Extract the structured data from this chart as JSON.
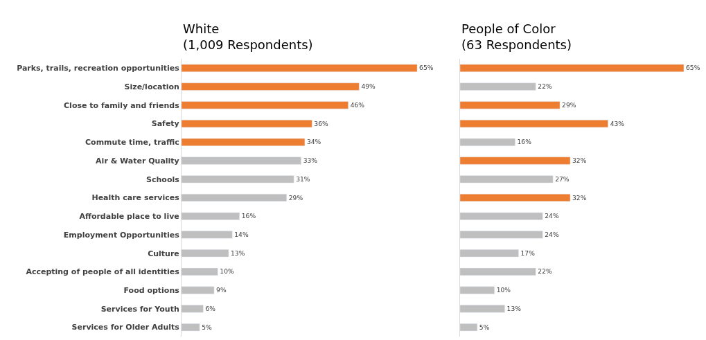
{
  "chart_data": [
    {
      "type": "bar",
      "orientation": "horizontal",
      "title": "White\n(1,009 Respondents)",
      "categories": [
        "Parks, trails, recreation opportunities",
        "Size/location",
        "Close to family and friends",
        "Safety",
        "Commute time, traffic",
        "Air & Water Quality",
        "Schools",
        "Health care services",
        "Affordable place to live",
        "Employment Opportunities",
        "Culture",
        "Accepting of people of all identities",
        "Food options",
        "Services for Youth",
        "Services for Older Adults"
      ],
      "values": [
        65,
        49,
        46,
        36,
        34,
        33,
        31,
        29,
        16,
        14,
        13,
        10,
        9,
        6,
        5
      ],
      "colors": [
        "#ed7d31",
        "#ed7d31",
        "#ed7d31",
        "#ed7d31",
        "#ed7d31",
        "#bfbfbf",
        "#bfbfbf",
        "#bfbfbf",
        "#bfbfbf",
        "#bfbfbf",
        "#bfbfbf",
        "#bfbfbf",
        "#bfbfbf",
        "#bfbfbf",
        "#bfbfbf"
      ],
      "value_labels": [
        "65%",
        "49%",
        "46%",
        "36%",
        "34%",
        "33%",
        "31%",
        "29%",
        "16%",
        "14%",
        "13%",
        "10%",
        "9%",
        "6%",
        "5%"
      ],
      "tick_labels": "y"
    },
    {
      "type": "bar",
      "orientation": "horizontal",
      "title": "People of Color\n(63 Respondents)",
      "values": [
        65,
        22,
        29,
        43,
        16,
        32,
        27,
        32,
        24,
        24,
        17,
        22,
        10,
        13,
        5
      ],
      "colors": [
        "#ed7d31",
        "#bfbfbf",
        "#ed7d31",
        "#ed7d31",
        "#bfbfbf",
        "#ed7d31",
        "#bfbfbf",
        "#ed7d31",
        "#bfbfbf",
        "#bfbfbf",
        "#bfbfbf",
        "#bfbfbf",
        "#bfbfbf",
        "#bfbfbf",
        "#bfbfbf"
      ],
      "value_labels": [
        "65%",
        "22%",
        "29%",
        "43%",
        "16%",
        "32%",
        "27%",
        "32%",
        "24%",
        "24%",
        "17%",
        "22%",
        "10%",
        "13%",
        "5%"
      ],
      "tick_labels": false
    }
  ]
}
